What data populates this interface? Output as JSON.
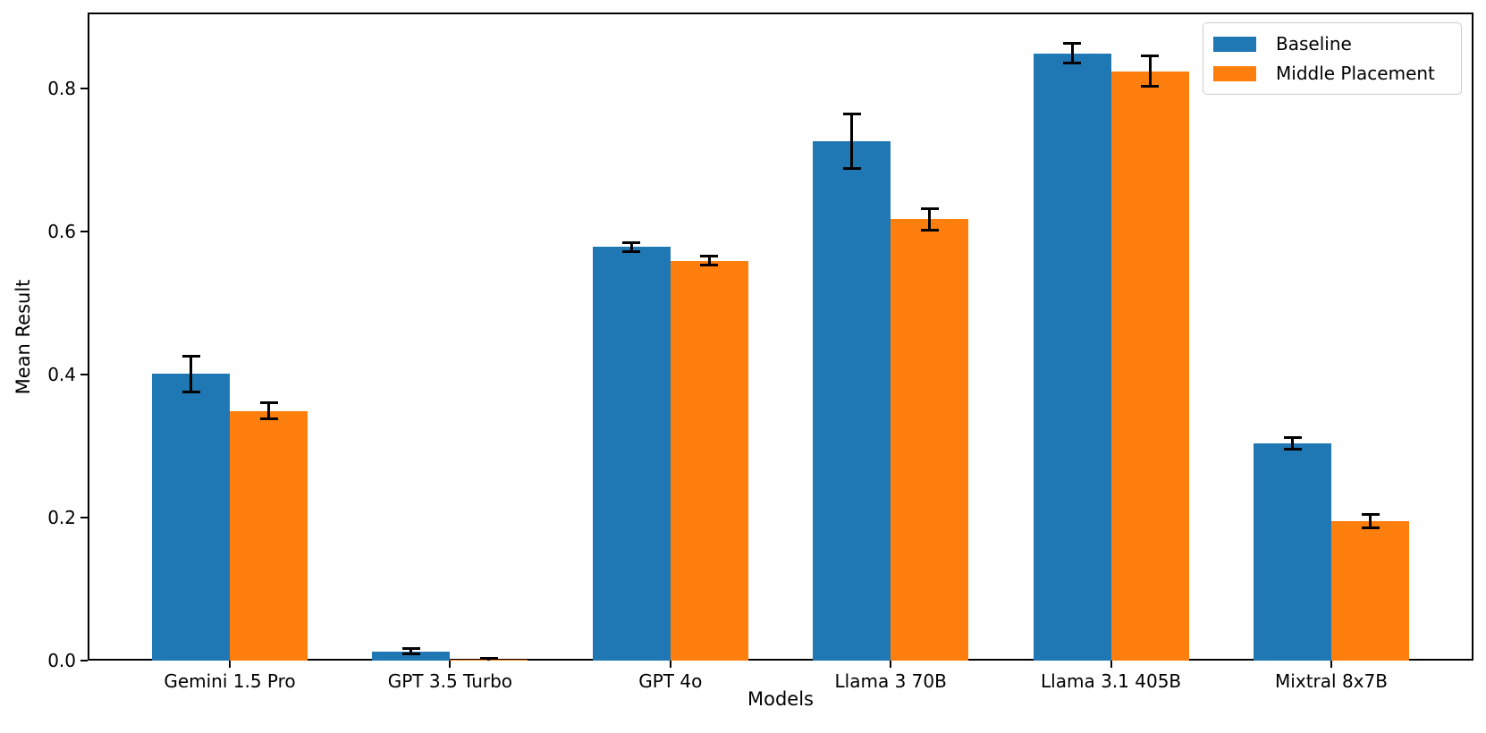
{
  "chart_data": {
    "type": "bar",
    "title": "",
    "xlabel": "Models",
    "ylabel": "Mean Result",
    "categories": [
      "Gemini 1.5 Pro",
      "GPT 3.5 Turbo",
      "GPT 4o",
      "Llama 3 70B",
      "Llama 3.1 405B",
      "Mixtral 8x7B"
    ],
    "series": [
      {
        "name": "Baseline",
        "color": "#1f77b4",
        "values": [
          0.401,
          0.013,
          0.578,
          0.726,
          0.849,
          0.304
        ],
        "errors": [
          0.025,
          0.004,
          0.006,
          0.038,
          0.014,
          0.008
        ]
      },
      {
        "name": "Middle Placement",
        "color": "#ff7f0e",
        "values": [
          0.349,
          0.001,
          0.559,
          0.617,
          0.824,
          0.195
        ],
        "errors": [
          0.011,
          0.002,
          0.006,
          0.015,
          0.021,
          0.009
        ]
      }
    ],
    "yticks": [
      0.0,
      0.2,
      0.4,
      0.6,
      0.8
    ],
    "ylim": [
      0,
      0.906
    ],
    "grid": false,
    "legend_position": "upper right",
    "error_bar_color": "#000000",
    "background_color": "#ffffff",
    "text_color": "#000000"
  }
}
